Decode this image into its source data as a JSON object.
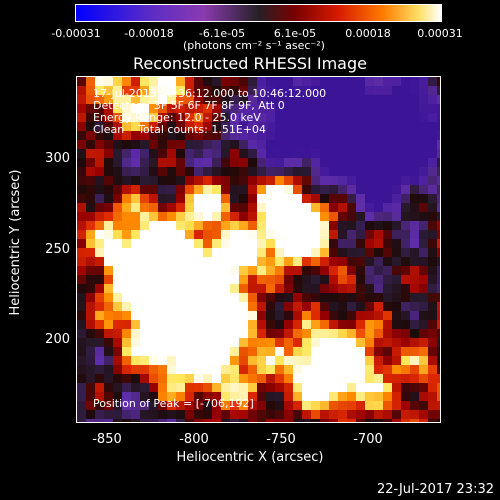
{
  "colorbar": {
    "ticks": [
      "-0.00031",
      "-0.00018",
      "-6.1e-05",
      "6.1e-05",
      "0.00018",
      "0.00031"
    ],
    "unit_label": "(photons cm⁻² s⁻¹ asec⁻²)"
  },
  "title": "Reconstructed RHESSI Image",
  "annotations": {
    "time_range": "17-Jul-2015 10:36:12.000 to 10:46:12.000",
    "detectors": "Detectors: 3F 5F 6F 7F 8F 9F, Att 0",
    "energy": "Energy Range: 12.0 - 25.0 keV",
    "clean": "Clean    Total counts: 1.51E+04",
    "peak": "Position of Peak = [-706,192]"
  },
  "axes": {
    "ylabel": "Heliocentric Y (arcsec)",
    "xlabel": "Heliocentric X (arcsec)",
    "yticks": [
      "300",
      "250",
      "200"
    ],
    "xticks": [
      "-850",
      "-800",
      "-750",
      "-700"
    ]
  },
  "footer_timestamp": "22-Jul-2017 23:32"
}
